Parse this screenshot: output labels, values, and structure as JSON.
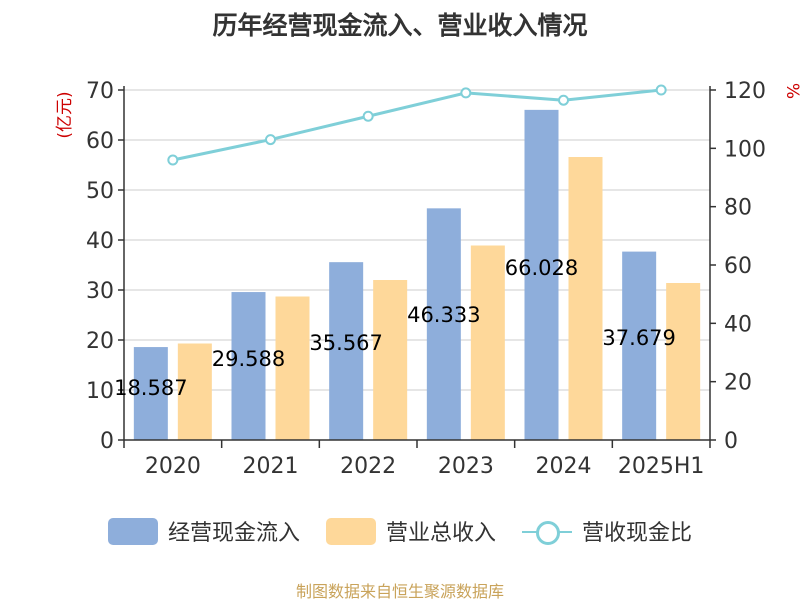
{
  "title": "历年经营现金流入、营业收入情况",
  "source": "制图数据来自恒生聚源数据库",
  "colors": {
    "cash": "#8eaedb",
    "revenue": "#fed89a",
    "ratio": "#7fcfd8",
    "unit": "#cc0000"
  },
  "chart_data": {
    "type": "bar",
    "categories": [
      "2020",
      "2021",
      "2022",
      "2023",
      "2024",
      "2025H1"
    ],
    "series": [
      {
        "name": "经营现金流入",
        "type": "bar",
        "axis": "left",
        "values": [
          18.587,
          29.588,
          35.567,
          46.333,
          66.028,
          37.679
        ],
        "labels": [
          "18.587",
          "29.588",
          "35.567",
          "46.333",
          "66.028",
          "37.679"
        ]
      },
      {
        "name": "营业总收入",
        "type": "bar",
        "axis": "left",
        "values": [
          19.3,
          28.7,
          32.0,
          38.9,
          56.6,
          31.4
        ]
      },
      {
        "name": "营收现金比",
        "type": "line",
        "axis": "right",
        "values": [
          96.0,
          103.0,
          111.0,
          119.0,
          116.5,
          120.0
        ]
      }
    ],
    "y_left": {
      "label": "(亿元)",
      "range": [
        0,
        70
      ],
      "ticks": [
        0,
        10,
        20,
        30,
        40,
        50,
        60,
        70
      ]
    },
    "y_right": {
      "label": "%",
      "range": [
        0,
        120
      ],
      "ticks": [
        0,
        20,
        40,
        60,
        80,
        100,
        120
      ]
    },
    "grid": true,
    "legend_position": "bottom"
  }
}
